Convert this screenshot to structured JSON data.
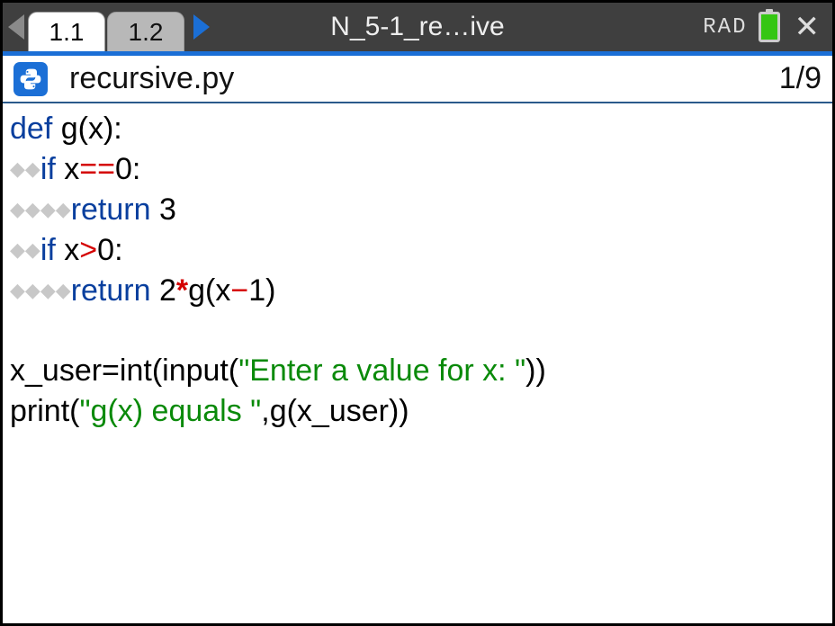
{
  "titlebar": {
    "tabs": [
      {
        "label": "1.1",
        "active": true
      },
      {
        "label": "1.2",
        "active": false
      }
    ],
    "doc_title": "N_5-1_re…ive",
    "mode": "RAD",
    "battery_pct": 100
  },
  "fileheader": {
    "icon": "python-icon",
    "filename": "recursive.py",
    "position": "1/9"
  },
  "code": {
    "indent_glyph": "◆",
    "colors": {
      "keyword": "#093f9e",
      "operator": "#d40000",
      "string": "#0a8a0a",
      "text": "#000000",
      "indent_diamond": "#c8c8c8"
    },
    "lines": [
      {
        "indent": 0,
        "tokens": [
          {
            "t": "def ",
            "c": "kw"
          },
          {
            "t": "g(x):",
            "c": ""
          }
        ]
      },
      {
        "indent": 2,
        "tokens": [
          {
            "t": "if ",
            "c": "kw"
          },
          {
            "t": "x",
            "c": ""
          },
          {
            "t": "==",
            "c": "op-eq"
          },
          {
            "t": "0:",
            "c": ""
          }
        ]
      },
      {
        "indent": 4,
        "tokens": [
          {
            "t": "return ",
            "c": "kw"
          },
          {
            "t": "3",
            "c": "num"
          }
        ]
      },
      {
        "indent": 2,
        "tokens": [
          {
            "t": "if ",
            "c": "kw"
          },
          {
            "t": "x",
            "c": ""
          },
          {
            "t": ">",
            "c": "op-gt"
          },
          {
            "t": "0:",
            "c": ""
          }
        ]
      },
      {
        "indent": 4,
        "tokens": [
          {
            "t": "return ",
            "c": "kw"
          },
          {
            "t": "2",
            "c": "num"
          },
          {
            "t": "*",
            "c": "op-star"
          },
          {
            "t": "g(x",
            "c": ""
          },
          {
            "t": "−",
            "c": "op-minus"
          },
          {
            "t": "1)",
            "c": ""
          }
        ]
      },
      {
        "indent": 0,
        "tokens": [
          {
            "t": " ",
            "c": ""
          }
        ]
      },
      {
        "indent": 0,
        "tokens": [
          {
            "t": "x_user=int(input(",
            "c": ""
          },
          {
            "t": "\"Enter a value for x: \"",
            "c": "str"
          },
          {
            "t": "))",
            "c": ""
          }
        ]
      },
      {
        "indent": 0,
        "tokens": [
          {
            "t": "print(",
            "c": ""
          },
          {
            "t": "\"g(x) equals \"",
            "c": "str"
          },
          {
            "t": ",g(x_user))",
            "c": ""
          }
        ]
      }
    ]
  }
}
